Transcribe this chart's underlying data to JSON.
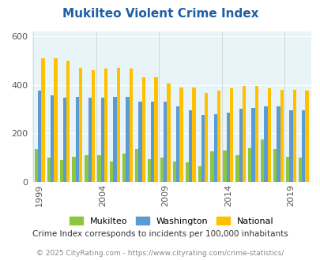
{
  "title": "Mukilteo Violent Crime Index",
  "years": [
    1999,
    2000,
    2001,
    2002,
    2003,
    2004,
    2005,
    2006,
    2007,
    2008,
    2009,
    2010,
    2011,
    2012,
    2013,
    2014,
    2015,
    2016,
    2017,
    2018,
    2019,
    2020
  ],
  "mukilteo": [
    135,
    100,
    90,
    105,
    110,
    110,
    85,
    115,
    135,
    95,
    100,
    85,
    80,
    65,
    125,
    130,
    110,
    140,
    175,
    135,
    105,
    100
  ],
  "washington": [
    375,
    355,
    345,
    350,
    345,
    345,
    350,
    350,
    330,
    330,
    330,
    310,
    295,
    275,
    280,
    285,
    300,
    305,
    310,
    310,
    295,
    295
  ],
  "national": [
    510,
    510,
    500,
    470,
    460,
    465,
    470,
    465,
    430,
    430,
    405,
    390,
    390,
    365,
    375,
    385,
    395,
    395,
    385,
    380,
    380,
    375
  ],
  "xtick_years": [
    1999,
    2004,
    2009,
    2014,
    2019
  ],
  "bar_width": 0.27,
  "colors": {
    "mukilteo": "#8dc63f",
    "washington": "#5b9bd5",
    "national": "#ffc000"
  },
  "bg_color": "#e8f4f8",
  "ylim": [
    0,
    620
  ],
  "yticks": [
    0,
    200,
    400,
    600
  ],
  "subtitle": "Crime Index corresponds to incidents per 100,000 inhabitants",
  "footer": "© 2025 CityRating.com - https://www.cityrating.com/crime-statistics/",
  "title_color": "#1f5fa6",
  "subtitle_color": "#333333",
  "footer_color": "#888888",
  "title_fontsize": 11,
  "subtitle_fontsize": 7.5,
  "footer_fontsize": 6.5
}
